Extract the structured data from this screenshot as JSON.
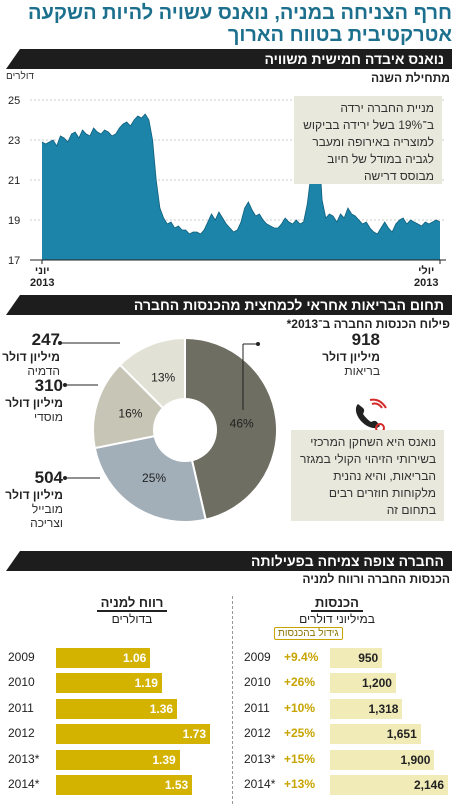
{
  "headline": "חרף הצניחה במניה, נואנס עשויה להיות השקעה אטרקטיבית בטווח הארוך",
  "section1": {
    "header": "נואנס איבדה חמישית משוויה",
    "subtitle": "מתחילת השנה",
    "unit": "דולרים",
    "note": "מניית החברה ירדה ב־19% בשל ירידה בביקוש למוצריה באירופה ומעבר לגביה במודל של חיוב מבוסס דרישה",
    "x_start": "יוני\n2013",
    "x_end": "יולי\n2013"
  },
  "section2": {
    "header": "תחום הבריאות אחראי לכמחצית מהכנסות החברה",
    "subtitle": "פילוח הכנסות החברה ב־2013*",
    "note": "נואנס היא השחקן המרכזי בשירותי הזיהוי הקולי במגזר הבריאות, והיא נהנית מלקוחות חוזרים רבים בתחום זה",
    "segments": [
      {
        "value": "918",
        "unit": "מיליון דולר",
        "name": "בריאות"
      },
      {
        "value": "247",
        "unit": "מיליון דולר",
        "name": "הדמיה"
      },
      {
        "value": "310",
        "unit": "מיליון דולר",
        "name": "מוסדי"
      },
      {
        "value": "504",
        "unit": "מיליון דולר",
        "name": "מובייל וצריכה"
      }
    ]
  },
  "section3": {
    "header": "החברה צופה צמיחה בפעילותה",
    "subtitle": "הכנסות החברה ורווח למניה",
    "eps_title": "רווח למניה",
    "eps_unit": "בדולרים",
    "rev_title": "הכנסות",
    "rev_unit": "במיליוני דולרים",
    "growth_label": "גידול בהכנסות"
  },
  "colors": {
    "teal": "#1b84a8",
    "gold": "#d4b200",
    "cream": "#f1ebb8",
    "pie_health": "#6e6e62",
    "pie_mobile": "#a3afb8",
    "pie_inst": "#c6c5b6",
    "pie_img": "#e2e1d6"
  },
  "chart_data": [
    {
      "type": "line",
      "title": "נואנס איבדה חמישית משוויה",
      "subtitle": "מתחילת השנה",
      "ylabel": "דולרים",
      "ylim": [
        17,
        25
      ],
      "yticks": [
        "17",
        "19",
        "21",
        "23",
        "25"
      ],
      "xlabels": [
        "יוני 2013",
        "יולי 2013"
      ],
      "area_fill": true,
      "grid": true,
      "values": [
        22.9,
        22.8,
        22.9,
        23.0,
        22.7,
        23.2,
        23.1,
        22.9,
        23.3,
        23.4,
        23.1,
        23.5,
        23.3,
        23.2,
        23.6,
        23.4,
        23.3,
        23.5,
        23.4,
        23.2,
        23.3,
        23.6,
        23.8,
        23.9,
        23.7,
        24.0,
        24.2,
        24.1,
        24.3,
        24.0,
        23.0,
        21.0,
        19.6,
        19.1,
        18.8,
        18.9,
        18.6,
        18.7,
        18.5,
        18.5,
        18.3,
        18.4,
        18.4,
        18.3,
        18.5,
        18.9,
        19.3,
        19.0,
        19.4,
        19.1,
        18.8,
        18.6,
        18.4,
        18.5,
        18.9,
        19.6,
        19.9,
        19.5,
        19.2,
        19.3,
        19.0,
        18.8,
        18.7,
        18.6,
        18.6,
        18.8,
        19.1,
        18.9,
        18.8,
        19.0,
        18.8,
        18.9,
        19.8,
        21.3,
        22.2,
        23.1,
        20.0,
        19.1,
        19.3,
        19.2,
        18.9,
        19.3,
        19.1,
        19.6,
        19.3,
        19.2,
        19.0,
        18.8,
        18.9,
        18.6,
        18.4,
        18.3,
        18.6,
        18.9,
        18.6,
        18.4,
        18.8,
        19.0,
        19.1,
        18.8,
        19.0,
        18.9,
        18.8,
        18.7,
        18.9,
        18.8,
        18.9,
        19.0,
        18.9
      ]
    },
    {
      "type": "pie",
      "title": "פילוח הכנסות החברה ב־2013*",
      "slices": [
        {
          "name": "בריאות",
          "value": 918,
          "pct": "46%",
          "color": "#6e6e62"
        },
        {
          "name": "מובייל וצריכה",
          "value": 504,
          "pct": "25%",
          "color": "#a3afb8"
        },
        {
          "name": "מוסדי",
          "value": 310,
          "pct": "16%",
          "color": "#c6c5b6"
        },
        {
          "name": "הדמיה",
          "value": 247,
          "pct": "13%",
          "color": "#e2e1d6"
        }
      ]
    },
    {
      "type": "bar",
      "title": "רווח למניה",
      "subtitle": "בדולרים",
      "categories": [
        "2009",
        "2010",
        "2011",
        "2012",
        "2013*",
        "2014*"
      ],
      "values": [
        1.06,
        1.19,
        1.36,
        1.73,
        1.39,
        1.53
      ],
      "value_labels": [
        "1.06",
        "1.19",
        "1.36",
        "1.73",
        "1.39",
        "1.53"
      ]
    },
    {
      "type": "bar",
      "title": "הכנסות",
      "subtitle": "במיליוני דולרים",
      "categories": [
        "2009",
        "2010",
        "2011",
        "2012",
        "2013*",
        "2014*"
      ],
      "values": [
        950,
        1200,
        1318,
        1651,
        1900,
        2146
      ],
      "value_labels": [
        "950",
        "1,200",
        "1,318",
        "1,651",
        "1,900",
        "2,146"
      ],
      "growth": [
        "+9.4%",
        "+26%",
        "+10%",
        "+25%",
        "+15%",
        "+13%"
      ],
      "growth_label": "גידול בהכנסות"
    }
  ]
}
